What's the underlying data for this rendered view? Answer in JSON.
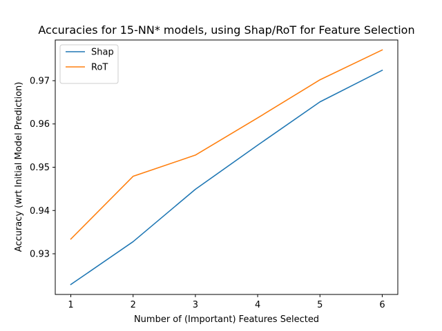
{
  "chart_data": {
    "type": "line",
    "title": "Accuracies for 15-NN* models, using Shap/RoT for Feature Selection",
    "xlabel": "Number of (Important) Features Selected",
    "ylabel": "Accuracy (wrt Initial Model Prediction)",
    "x": [
      1,
      2,
      3,
      4,
      5,
      6
    ],
    "xticks": [
      "1",
      "2",
      "3",
      "4",
      "5",
      "6"
    ],
    "xlim": [
      0.75,
      6.25
    ],
    "yticks": [
      0.93,
      0.94,
      0.95,
      0.96,
      0.97
    ],
    "ytick_labels": [
      "0.93",
      "0.94",
      "0.95",
      "0.96",
      "0.97"
    ],
    "ylim": [
      0.9206,
      0.9794
    ],
    "grid": false,
    "legend_position": "top-left",
    "series": [
      {
        "name": "Shap",
        "color": "#1f77b4",
        "values": [
          0.9229,
          0.9328,
          0.9449,
          0.9551,
          0.9651,
          0.9724
        ]
      },
      {
        "name": "RoT",
        "color": "#ff7f0e",
        "values": [
          0.9334,
          0.9479,
          0.9528,
          0.9614,
          0.9702,
          0.9771
        ]
      }
    ]
  }
}
